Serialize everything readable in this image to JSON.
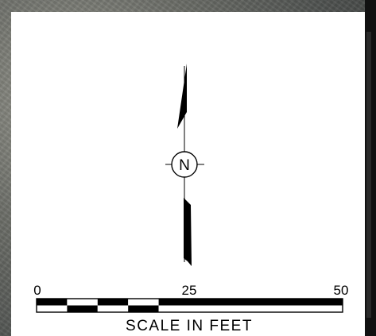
{
  "north_arrow": {
    "letter": "N"
  },
  "scale_bar": {
    "ticks": [
      "0",
      "25",
      "50"
    ],
    "caption": "SCALE IN FEET",
    "minor_segments": 5,
    "colors": {
      "fill": "#000000",
      "empty": "#ffffff"
    }
  }
}
